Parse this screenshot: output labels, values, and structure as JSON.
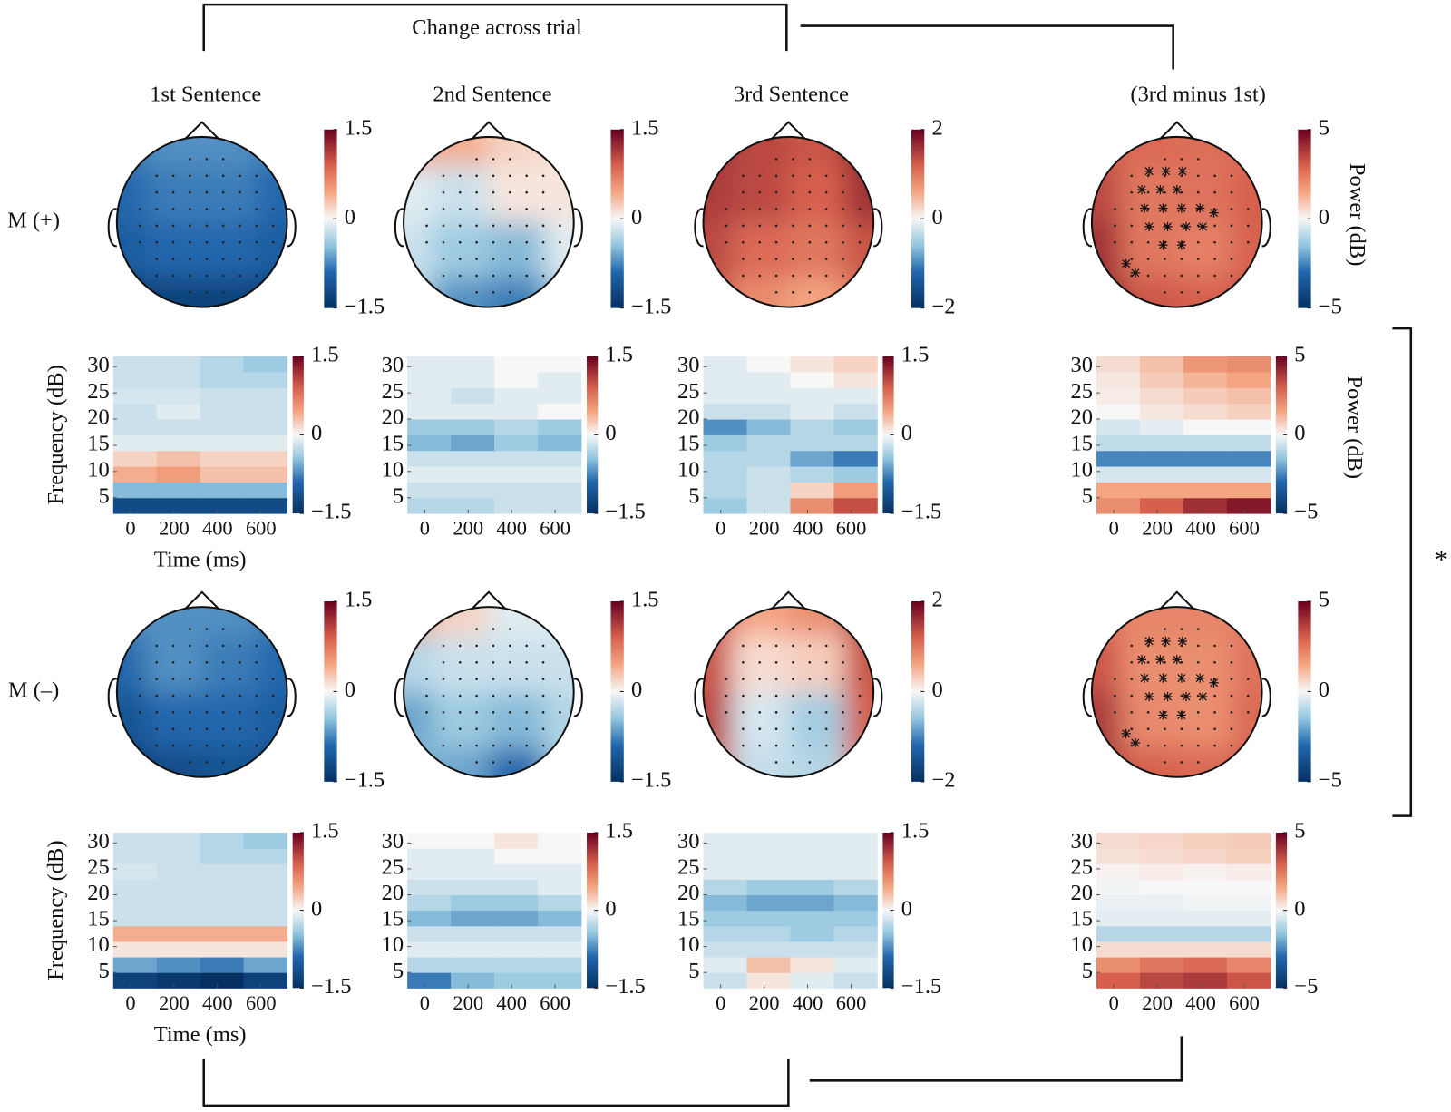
{
  "header": "Change across trial",
  "columns": [
    "1st Sentence",
    "2nd Sentence",
    "3rd Sentence",
    "(3rd minus 1st)"
  ],
  "power_label": "Power (dB)",
  "significance": "*",
  "tf_axes": {
    "xlabel": "Time (ms)",
    "ylabel": "Frequency (dB)",
    "xlim": [
      -80,
      720
    ],
    "ylim": [
      2,
      32
    ],
    "xticks": [
      0,
      200,
      400,
      600
    ],
    "yticks": [
      5,
      10,
      15,
      20,
      25,
      30
    ],
    "time_bins": [
      -80,
      120,
      320,
      520,
      720
    ],
    "freq_bins": [
      2,
      5,
      8,
      11,
      14,
      17,
      20,
      23,
      26,
      29,
      32
    ]
  },
  "rows": [
    {
      "label": "M (+)",
      "panels": [
        {
          "topo": {
            "clim": [
              -1.5,
              1.5
            ],
            "ticks": [
              {
                "value": -1.5,
                "label": "−1.5"
              },
              0,
              1.5
            ],
            "values": [
              [
                -0.8,
                -0.7,
                -0.7,
                -0.8
              ],
              [
                -0.9,
                -0.8,
                -0.8,
                -0.9
              ],
              [
                -1.0,
                -0.9,
                -0.9,
                -1.0
              ],
              [
                -1.4,
                -1.3,
                -1.3,
                -1.4
              ]
            ]
          },
          "tf": {
            "clim": [
              -1.5,
              1.5
            ],
            "ticks": [
              {
                "value": -1.5,
                "label": "−1.5"
              },
              0,
              1.5
            ],
            "values": [
              [
                -1.2,
                -1.2,
                -1.2,
                -1.2
              ],
              [
                -0.5,
                -0.5,
                -0.5,
                -0.5
              ],
              [
                0.4,
                0.5,
                0.3,
                0.3
              ],
              [
                0.2,
                0.3,
                0.2,
                0.2
              ],
              [
                -0.1,
                -0.1,
                -0.1,
                -0.1
              ],
              [
                -0.2,
                -0.2,
                -0.2,
                -0.2
              ],
              [
                -0.2,
                -0.1,
                -0.2,
                -0.2
              ],
              [
                -0.15,
                -0.15,
                -0.2,
                -0.2
              ],
              [
                -0.2,
                -0.2,
                -0.3,
                -0.3
              ],
              [
                -0.2,
                -0.2,
                -0.3,
                -0.4
              ]
            ]
          }
        },
        {
          "topo": {
            "clim": [
              -1.5,
              1.5
            ],
            "ticks": [
              {
                "value": -1.5,
                "label": "−1.5"
              },
              0,
              1.5
            ],
            "values": [
              [
                0.5,
                0.4,
                0.2,
                0.1
              ],
              [
                -0.1,
                -0.2,
                0.1,
                0.1
              ],
              [
                -0.2,
                -0.4,
                -0.5,
                -0.1
              ],
              [
                -0.3,
                -0.7,
                -0.8,
                -0.4
              ]
            ]
          },
          "tf": {
            "clim": [
              -1.5,
              1.5
            ],
            "ticks": [
              {
                "value": -1.5,
                "label": "−1.5"
              },
              0,
              1.5
            ],
            "values": [
              [
                -0.3,
                -0.3,
                -0.2,
                -0.2
              ],
              [
                -0.2,
                -0.2,
                -0.2,
                -0.2
              ],
              [
                -0.1,
                -0.1,
                -0.1,
                -0.1
              ],
              [
                -0.2,
                -0.2,
                -0.2,
                -0.2
              ],
              [
                -0.5,
                -0.6,
                -0.4,
                -0.5
              ],
              [
                -0.4,
                -0.4,
                -0.3,
                -0.4
              ],
              [
                -0.1,
                -0.1,
                -0.1,
                0
              ],
              [
                -0.1,
                -0.2,
                -0.1,
                -0.1
              ],
              [
                -0.1,
                -0.1,
                0,
                -0.1
              ],
              [
                -0.1,
                -0.1,
                0,
                0
              ]
            ]
          }
        },
        {
          "topo": {
            "clim": [
              -2,
              2
            ],
            "ticks": [
              {
                "value": -2,
                "label": "−2"
              },
              0,
              2
            ],
            "values": [
              [
                1.6,
                1.4,
                1.3,
                1.8
              ],
              [
                1.5,
                1.4,
                1.2,
                1.6
              ],
              [
                1.4,
                1.1,
                1.0,
                1.3
              ],
              [
                1.3,
                0.8,
                0.6,
                1.1
              ]
            ]
          },
          "tf": {
            "clim": [
              -1.5,
              1.5
            ],
            "ticks": [
              {
                "value": -1.5,
                "label": "−1.5"
              },
              0,
              1.5
            ],
            "values": [
              [
                -0.4,
                -0.2,
                0.6,
                1.0
              ],
              [
                -0.3,
                -0.2,
                0.2,
                0.5
              ],
              [
                -0.3,
                -0.2,
                -0.3,
                -0.4
              ],
              [
                -0.3,
                -0.3,
                -0.6,
                -0.8
              ],
              [
                -0.4,
                -0.3,
                -0.3,
                -0.3
              ],
              [
                -0.7,
                -0.5,
                -0.3,
                -0.4
              ],
              [
                -0.2,
                -0.2,
                -0.1,
                -0.2
              ],
              [
                -0.1,
                -0.1,
                -0.1,
                -0.1
              ],
              [
                -0.1,
                -0.1,
                0,
                0.1
              ],
              [
                -0.1,
                0,
                0.1,
                0.2
              ]
            ]
          }
        },
        {
          "topo": {
            "clim": [
              -5,
              5
            ],
            "ticks": [
              {
                "value": -5,
                "label": "−5"
              },
              0,
              5
            ],
            "values": [
              [
                3,
                2.8,
                2.7,
                2.8
              ],
              [
                3.5,
                2.5,
                2.6,
                3
              ],
              [
                4,
                2.5,
                2.3,
                3
              ],
              [
                4.5,
                3.2,
                3,
                3.3
              ]
            ]
          },
          "tf": {
            "clim": [
              -5,
              5
            ],
            "ticks": [
              {
                "value": -5,
                "label": "−5"
              },
              0,
              5
            ],
            "values": [
              [
                2,
                3,
                4,
                4.5
              ],
              [
                1.5,
                1.5,
                1.5,
                1.5
              ],
              [
                -0.5,
                -0.5,
                -0.5,
                -0.5
              ],
              [
                -2.5,
                -2.5,
                -2.5,
                -2.5
              ],
              [
                -0.8,
                -0.8,
                -0.8,
                -0.8
              ],
              [
                -0.5,
                -0.3,
                0,
                0
              ],
              [
                0,
                0.3,
                0.5,
                0.7
              ],
              [
                0.2,
                0.5,
                0.8,
                1.0
              ],
              [
                0.3,
                0.8,
                1.2,
                1.5
              ],
              [
                0.5,
                1,
                1.8,
                2
              ]
            ]
          }
        }
      ]
    },
    {
      "label": "M (–)",
      "panels": [
        {
          "topo": {
            "clim": [
              -1.5,
              1.5
            ],
            "ticks": [
              {
                "value": -1.5,
                "label": "−1.5"
              },
              0,
              1.5
            ],
            "values": [
              [
                -0.7,
                -0.7,
                -0.7,
                -0.8
              ],
              [
                -0.9,
                -0.7,
                -0.8,
                -0.9
              ],
              [
                -1.1,
                -0.9,
                -0.9,
                -1.0
              ],
              [
                -1.4,
                -1.2,
                -1.1,
                -1.2
              ]
            ]
          },
          "tf": {
            "clim": [
              -1.5,
              1.5
            ],
            "ticks": [
              {
                "value": -1.5,
                "label": "−1.5"
              },
              0,
              1.5
            ],
            "values": [
              [
                -1.3,
                -1.4,
                -1.5,
                -1.3
              ],
              [
                -0.6,
                -0.7,
                -0.8,
                -0.6
              ],
              [
                0.1,
                0.1,
                0.1,
                0.1
              ],
              [
                0.4,
                0.4,
                0.4,
                0.4
              ],
              [
                -0.2,
                -0.2,
                -0.2,
                -0.2
              ],
              [
                -0.2,
                -0.2,
                -0.2,
                -0.2
              ],
              [
                -0.2,
                -0.2,
                -0.2,
                -0.2
              ],
              [
                -0.15,
                -0.2,
                -0.2,
                -0.2
              ],
              [
                -0.2,
                -0.2,
                -0.3,
                -0.3
              ],
              [
                -0.2,
                -0.2,
                -0.3,
                -0.4
              ]
            ]
          }
        },
        {
          "topo": {
            "clim": [
              -1.5,
              1.5
            ],
            "ticks": [
              {
                "value": -1.5,
                "label": "−1.5"
              },
              0,
              1.5
            ],
            "values": [
              [
                0.5,
                0.2,
                -0.1,
                -0.1
              ],
              [
                -0.3,
                -0.2,
                -0.2,
                -0.2
              ],
              [
                -0.6,
                -0.4,
                -0.5,
                -0.3
              ],
              [
                -0.5,
                -0.6,
                -0.9,
                -0.4
              ]
            ]
          },
          "tf": {
            "clim": [
              -1.5,
              1.5
            ],
            "ticks": [
              {
                "value": -1.5,
                "label": "−1.5"
              },
              0,
              1.5
            ],
            "values": [
              [
                -0.8,
                -0.5,
                -0.4,
                -0.4
              ],
              [
                -0.3,
                -0.3,
                -0.3,
                -0.3
              ],
              [
                -0.1,
                -0.1,
                -0.1,
                -0.1
              ],
              [
                -0.2,
                -0.2,
                -0.2,
                -0.2
              ],
              [
                -0.5,
                -0.6,
                -0.6,
                -0.5
              ],
              [
                -0.3,
                -0.4,
                -0.4,
                -0.3
              ],
              [
                -0.2,
                -0.2,
                -0.2,
                -0.1
              ],
              [
                -0.1,
                -0.1,
                -0.1,
                -0.1
              ],
              [
                -0.1,
                -0.1,
                0,
                0
              ],
              [
                0,
                0,
                0.1,
                0
              ]
            ]
          }
        },
        {
          "topo": {
            "clim": [
              -2,
              2
            ],
            "ticks": [
              {
                "value": -2,
                "label": "−2"
              },
              0,
              2
            ],
            "values": [
              [
                1.2,
                0.6,
                0.8,
                1.5
              ],
              [
                1.3,
                0.2,
                0.3,
                1.3
              ],
              [
                1.4,
                -0.2,
                -0.5,
                1.2
              ],
              [
                1.2,
                -0.3,
                -0.4,
                1.0
              ]
            ]
          },
          "tf": {
            "clim": [
              -1.5,
              1.5
            ],
            "ticks": [
              {
                "value": -1.5,
                "label": "−1.5"
              },
              0,
              1.5
            ],
            "values": [
              [
                -0.2,
                0.1,
                -0.1,
                -0.2
              ],
              [
                -0.1,
                0.3,
                0.1,
                -0.1
              ],
              [
                -0.2,
                -0.2,
                -0.2,
                -0.2
              ],
              [
                -0.3,
                -0.3,
                -0.4,
                -0.3
              ],
              [
                -0.4,
                -0.4,
                -0.4,
                -0.4
              ],
              [
                -0.5,
                -0.6,
                -0.6,
                -0.5
              ],
              [
                -0.3,
                -0.4,
                -0.4,
                -0.3
              ],
              [
                -0.1,
                -0.1,
                -0.1,
                -0.1
              ],
              [
                -0.1,
                -0.1,
                -0.1,
                -0.1
              ],
              [
                -0.1,
                -0.1,
                -0.1,
                -0.1
              ]
            ]
          }
        },
        {
          "topo": {
            "clim": [
              -5,
              5
            ],
            "ticks": [
              {
                "value": -5,
                "label": "−5"
              },
              0,
              5
            ],
            "values": [
              [
                2.5,
                2.2,
                2.2,
                2.5
              ],
              [
                3.2,
                2,
                2,
                2.6
              ],
              [
                3.8,
                2.1,
                2,
                2.8
              ],
              [
                4,
                3,
                2.8,
                3
              ]
            ]
          },
          "tf": {
            "clim": [
              -5,
              5
            ],
            "ticks": [
              {
                "value": -5,
                "label": "−5"
              },
              0,
              5
            ],
            "values": [
              [
                3,
                3.5,
                3.8,
                3.2
              ],
              [
                2,
                2.5,
                2.8,
                2.2
              ],
              [
                0.5,
                0.5,
                0.5,
                0.5
              ],
              [
                -1,
                -1,
                -1,
                -1
              ],
              [
                -0.3,
                -0.3,
                -0.3,
                -0.3
              ],
              [
                -0.2,
                -0.2,
                -0.1,
                -0.1
              ],
              [
                -0.1,
                0,
                0,
                0
              ],
              [
                0.1,
                0.2,
                0.1,
                0.2
              ],
              [
                0.4,
                0.5,
                0.6,
                0.7
              ],
              [
                0.5,
                0.6,
                0.7,
                0.8
              ]
            ]
          }
        }
      ]
    }
  ]
}
